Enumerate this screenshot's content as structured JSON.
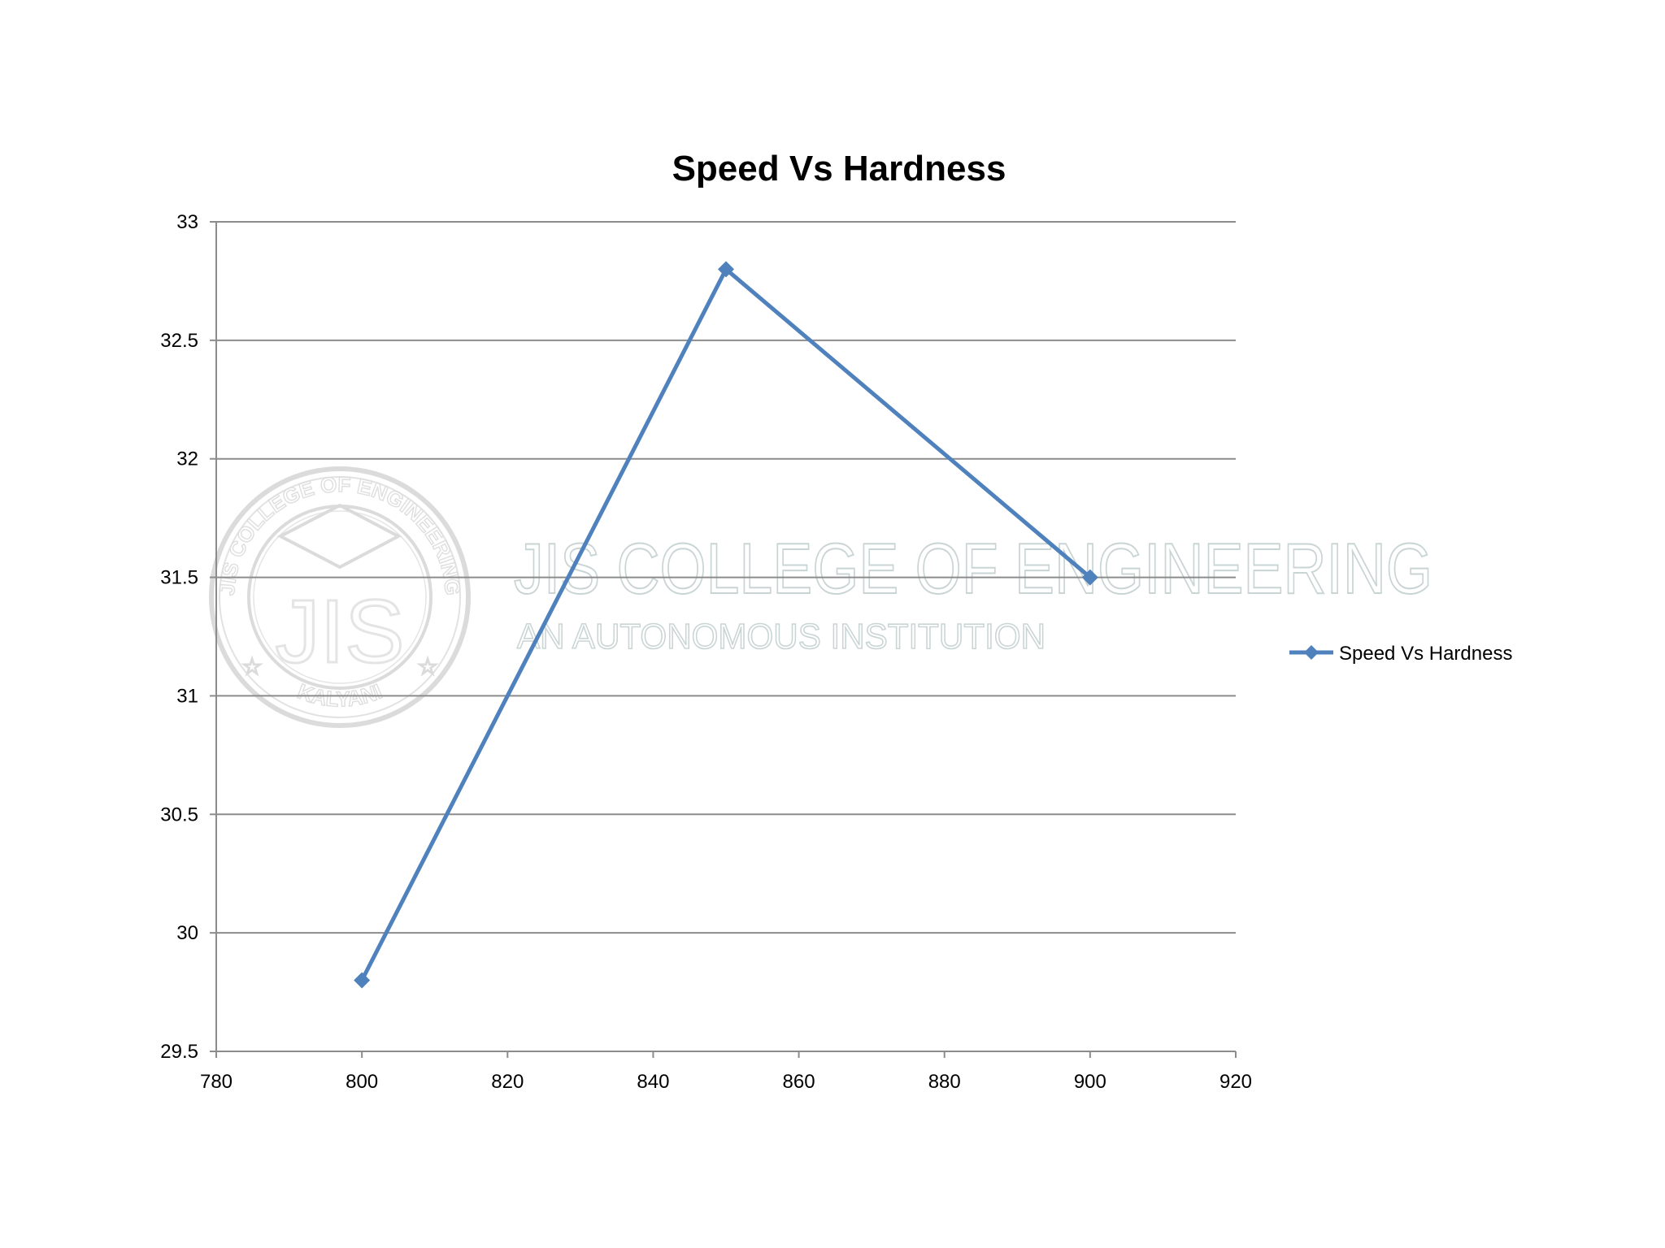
{
  "chart_data": {
    "type": "line",
    "title": "Speed Vs Hardness",
    "xlabel": "",
    "ylabel": "",
    "xlim": [
      780,
      920
    ],
    "ylim": [
      29.5,
      33
    ],
    "x_ticks": [
      780,
      800,
      820,
      840,
      860,
      880,
      900,
      920
    ],
    "y_ticks": [
      29.5,
      30,
      30.5,
      31,
      31.5,
      32,
      32.5,
      33
    ],
    "x_tick_labels": [
      "780",
      "800",
      "820",
      "840",
      "860",
      "880",
      "900",
      "920"
    ],
    "y_tick_labels": [
      "29.5",
      "30",
      "30.5",
      "31",
      "31.5",
      "32",
      "32.5",
      "33"
    ],
    "grid": "horizontal",
    "legend_position": "right",
    "series": [
      {
        "name": "Speed Vs Hardness",
        "color": "#4f81bd",
        "marker": "diamond",
        "x": [
          800,
          850,
          900
        ],
        "y": [
          29.8,
          32.8,
          31.5
        ]
      }
    ]
  },
  "watermark": {
    "line1": "JIS COLLEGE OF ENGINEERING",
    "line2": "AN AUTONOMOUS INSTITUTION",
    "seal_top": "JIS COLLEGE OF ENGINEERING",
    "seal_bottom": "KALYANI",
    "seal_monogram": "JIS",
    "color": "#b8c6c6"
  }
}
